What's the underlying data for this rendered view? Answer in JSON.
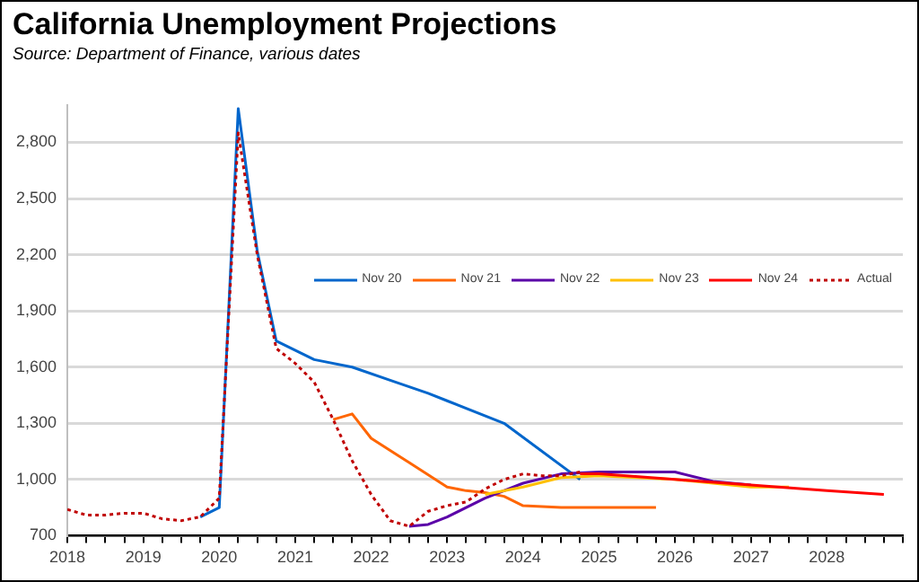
{
  "chart_data": {
    "type": "line",
    "title": "California Unemployment Projections",
    "subtitle": "Source:  Department of Finance, various dates",
    "xlim": [
      2018,
      2029
    ],
    "xticks": [
      2018,
      {
        "value": 2018.25,
        "label": null
      },
      {
        "value": 2018.5,
        "label": null
      },
      {
        "value": 2018.75,
        "label": null
      },
      2019,
      {
        "value": 2019.25,
        "label": null
      },
      {
        "value": 2019.5,
        "label": null
      },
      {
        "value": 2019.75,
        "label": null
      },
      2020,
      {
        "value": 2020.25,
        "label": null
      },
      {
        "value": 2020.5,
        "label": null
      },
      {
        "value": 2020.75,
        "label": null
      },
      2021,
      {
        "value": 2021.25,
        "label": null
      },
      {
        "value": 2021.5,
        "label": null
      },
      {
        "value": 2021.75,
        "label": null
      },
      2022,
      {
        "value": 2022.25,
        "label": null
      },
      {
        "value": 2022.5,
        "label": null
      },
      {
        "value": 2022.75,
        "label": null
      },
      2023,
      {
        "value": 2023.25,
        "label": null
      },
      {
        "value": 2023.5,
        "label": null
      },
      {
        "value": 2023.75,
        "label": null
      },
      2024,
      {
        "value": 2024.25,
        "label": null
      },
      {
        "value": 2024.5,
        "label": null
      },
      {
        "value": 2024.75,
        "label": null
      },
      2025,
      {
        "value": 2025.25,
        "label": null
      },
      {
        "value": 2025.5,
        "label": null
      },
      {
        "value": 2025.75,
        "label": null
      },
      2026,
      {
        "value": 2026.25,
        "label": null
      },
      {
        "value": 2026.5,
        "label": null
      },
      {
        "value": 2026.75,
        "label": null
      },
      2027,
      {
        "value": 2027.25,
        "label": null
      },
      {
        "value": 2027.5,
        "label": null
      },
      {
        "value": 2027.75,
        "label": null
      },
      2028,
      {
        "value": 2028.25,
        "label": null
      },
      {
        "value": 2028.5,
        "label": null
      },
      {
        "value": 2028.75,
        "label": null
      },
      {
        "value": 2029,
        "label": null
      }
    ],
    "ylim": [
      700,
      3000
    ],
    "yticks": [
      700,
      {
        "value": 1000,
        "label": "1,000"
      },
      {
        "value": 1300,
        "label": "1,300"
      },
      {
        "value": 1600,
        "label": "1,600"
      },
      {
        "value": 1900,
        "label": "1,900"
      },
      {
        "value": 2200,
        "label": "2,200"
      },
      {
        "value": 2500,
        "label": "2,500"
      },
      {
        "value": 2800,
        "label": "2,800"
      }
    ],
    "grid": "y",
    "legend": "right",
    "series": [
      {
        "name": "Nov 20",
        "color": "#0066cc",
        "x": [
          2019.75,
          2020,
          2020.25,
          2020.5,
          2020.75,
          2021.25,
          2021.75,
          2022.25,
          2022.75,
          2023,
          2023.75,
          2024.75
        ],
        "values": [
          800,
          850,
          2980,
          2220,
          1740,
          1640,
          1600,
          1530,
          1460,
          1420,
          1300,
          1000
        ]
      },
      {
        "name": "Nov 21",
        "color": "#ff6600",
        "x": [
          2021.5,
          2021.75,
          2022,
          2022.5,
          2023,
          2023.25,
          2023.5,
          2023.75,
          2024,
          2024.5,
          2025,
          2025.75
        ],
        "values": [
          1320,
          1350,
          1220,
          1090,
          960,
          940,
          930,
          910,
          860,
          850,
          850,
          850
        ]
      },
      {
        "name": "Nov 22",
        "color": "#5b00a8",
        "x": [
          2022.5,
          2022.75,
          2023,
          2023.5,
          2024,
          2024.5,
          2025,
          2025.5,
          2026,
          2026.5,
          2027
        ],
        "values": [
          750,
          760,
          800,
          900,
          980,
          1030,
          1040,
          1040,
          1040,
          990,
          970
        ]
      },
      {
        "name": "Nov 23",
        "color": "#ffc000",
        "x": [
          2023.5,
          2024,
          2024.5,
          2025,
          2026,
          2027,
          2027.5
        ],
        "values": [
          920,
          960,
          1010,
          1020,
          1000,
          960,
          960
        ]
      },
      {
        "name": "Nov 24",
        "color": "#ff0000",
        "x": [
          2024.75,
          2025,
          2026,
          2027,
          2028,
          2028.75
        ],
        "values": [
          1030,
          1030,
          1000,
          970,
          940,
          920
        ]
      },
      {
        "name": "Actual",
        "color": "#c00000",
        "line_style": "dotted",
        "x": [
          2018,
          2018.25,
          2018.5,
          2018.75,
          2019,
          2019.25,
          2019.5,
          2019.75,
          2020,
          2020.25,
          2020.5,
          2020.75,
          2021,
          2021.25,
          2021.5,
          2021.75,
          2022,
          2022.25,
          2022.5,
          2022.75,
          2023,
          2023.25,
          2023.5,
          2023.75,
          2024,
          2024.25,
          2024.5,
          2024.75
        ],
        "values": [
          840,
          810,
          810,
          820,
          820,
          790,
          780,
          800,
          900,
          2850,
          2200,
          1700,
          1620,
          1520,
          1320,
          1100,
          920,
          780,
          750,
          830,
          860,
          880,
          950,
          1000,
          1030,
          1020,
          1020,
          1040
        ]
      }
    ]
  }
}
